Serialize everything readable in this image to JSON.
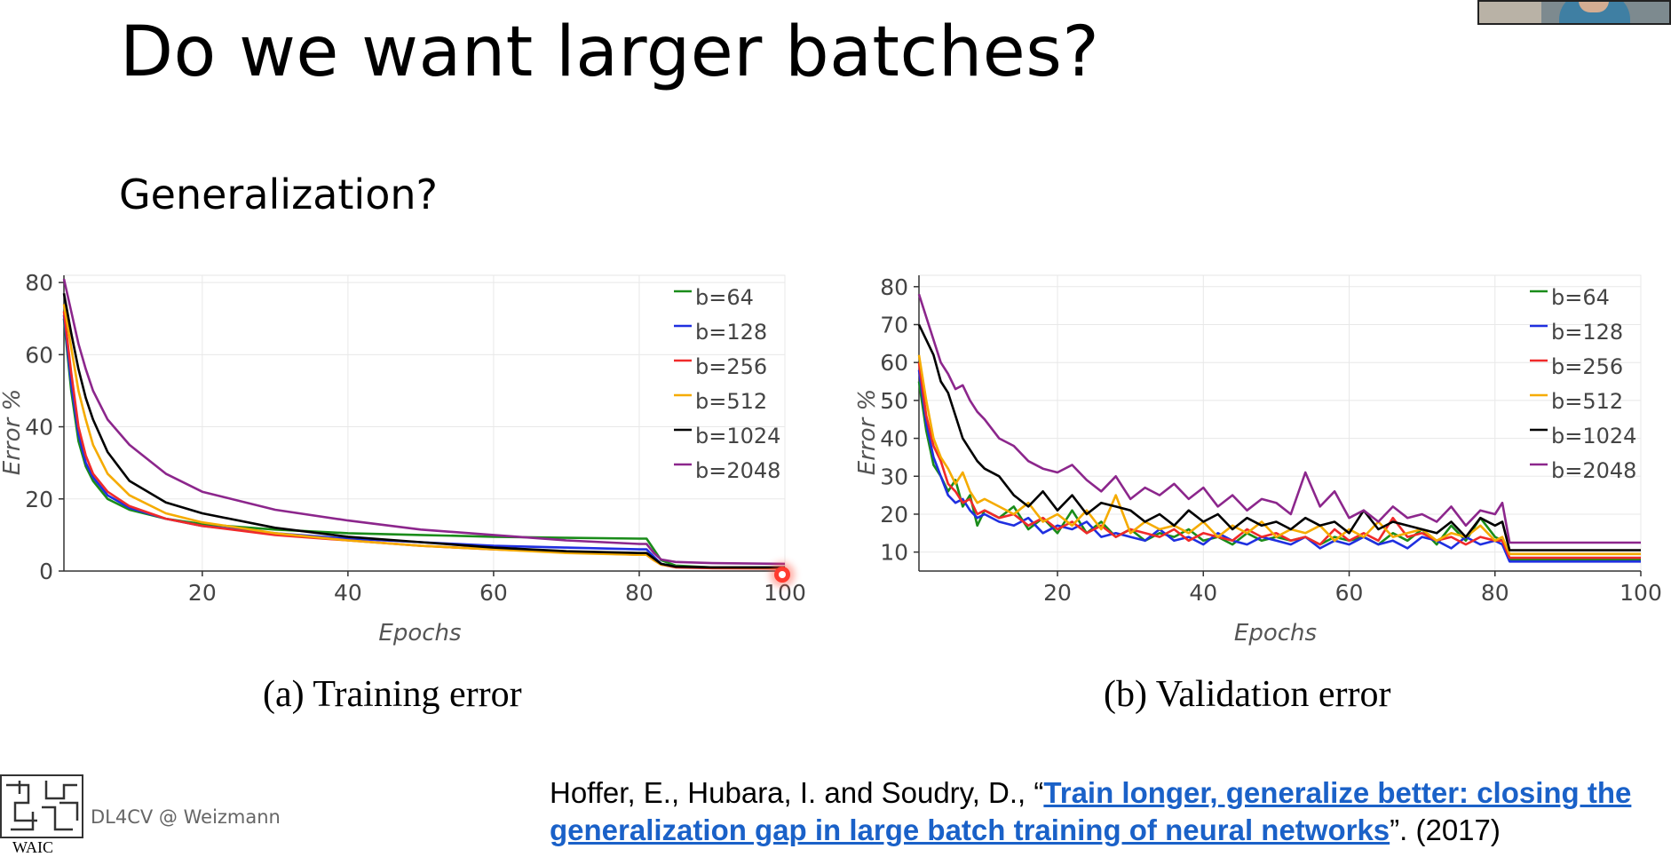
{
  "slide": {
    "title": "Do we want larger batches?",
    "subtitle": "Generalization?",
    "footer": {
      "course": "DL4CV @ Weizmann",
      "logo_text": "WAIC"
    },
    "reference": {
      "authors": "Hoffer, E., Hubara, I. and Soudry, D., “",
      "link_text": "Train longer, generalize better: closing the generalization gap in large batch training of neural networks",
      "tail": "”. (2017)"
    }
  },
  "chart_data": [
    {
      "type": "line",
      "caption": "(a) Training error",
      "xlabel": "Epochs",
      "ylabel": "Error %",
      "xlim": [
        1,
        100
      ],
      "ylim": [
        0,
        82
      ],
      "xticks": [
        20,
        40,
        60,
        80,
        100
      ],
      "yticks": [
        0,
        20,
        40,
        60,
        80
      ],
      "grid": true,
      "legend": "top-right",
      "series": [
        {
          "name": "b=64",
          "color": "#1a8c1a",
          "x": [
            1,
            2,
            3,
            4,
            5,
            7,
            10,
            15,
            20,
            30,
            40,
            50,
            60,
            70,
            80,
            81,
            82,
            83,
            85,
            90,
            100
          ],
          "y": [
            70,
            50,
            36,
            29,
            25,
            20,
            17,
            14.5,
            13,
            11.5,
            10.5,
            10,
            9.5,
            9.2,
            9,
            9,
            6,
            3,
            1.5,
            1,
            1
          ]
        },
        {
          "name": "b=128",
          "color": "#1f2fe0",
          "x": [
            1,
            2,
            3,
            4,
            5,
            7,
            10,
            15,
            20,
            30,
            40,
            50,
            60,
            70,
            80,
            81,
            82,
            83,
            85,
            90,
            100
          ],
          "y": [
            71,
            52,
            38,
            30,
            26,
            21,
            17.5,
            14.5,
            12.5,
            10.5,
            9,
            8,
            7,
            6.5,
            6,
            6,
            4,
            2,
            1.2,
            1,
            0.9
          ]
        },
        {
          "name": "b=256",
          "color": "#f02a2a",
          "x": [
            1,
            2,
            3,
            4,
            5,
            7,
            10,
            15,
            20,
            30,
            40,
            50,
            60,
            70,
            80,
            81,
            82,
            83,
            85,
            90,
            100
          ],
          "y": [
            72,
            55,
            40,
            32,
            27,
            22,
            18,
            14.5,
            12.5,
            10,
            8.5,
            7,
            6,
            5.2,
            4.5,
            4.5,
            3,
            1.8,
            1,
            0.8,
            0.7
          ]
        },
        {
          "name": "b=512",
          "color": "#f5ab00",
          "x": [
            1,
            2,
            3,
            4,
            5,
            7,
            10,
            15,
            20,
            30,
            40,
            50,
            60,
            70,
            80,
            81,
            82,
            83,
            85,
            90,
            100
          ],
          "y": [
            74,
            62,
            50,
            42,
            35,
            27,
            21,
            16,
            13.5,
            10.5,
            8.5,
            7,
            6,
            5,
            4.5,
            4.5,
            3,
            1.8,
            1.2,
            1,
            0.9
          ]
        },
        {
          "name": "b=1024",
          "color": "#000000",
          "x": [
            1,
            2,
            3,
            4,
            5,
            7,
            10,
            15,
            20,
            30,
            40,
            50,
            60,
            70,
            80,
            81,
            82,
            83,
            85,
            90,
            100
          ],
          "y": [
            77,
            66,
            56,
            48,
            42,
            33,
            25,
            19,
            16,
            12,
            9.5,
            8,
            6.5,
            5.5,
            5,
            5,
            3.5,
            2,
            1.2,
            1,
            1
          ]
        },
        {
          "name": "b=2048",
          "color": "#8c268c",
          "x": [
            1,
            2,
            3,
            4,
            5,
            7,
            10,
            15,
            20,
            30,
            40,
            50,
            60,
            70,
            80,
            81,
            82,
            83,
            85,
            90,
            100
          ],
          "y": [
            81,
            72,
            63,
            56,
            50,
            42,
            35,
            27,
            22,
            17,
            14,
            11.5,
            10,
            8.5,
            7.5,
            7.5,
            5,
            3.2,
            2.5,
            2.2,
            2
          ]
        }
      ]
    },
    {
      "type": "line",
      "caption": "(b) Validation error",
      "xlabel": "Epochs",
      "ylabel": "Error %",
      "xlim": [
        1,
        100
      ],
      "ylim": [
        5,
        83
      ],
      "xticks": [
        20,
        40,
        60,
        80,
        100
      ],
      "yticks": [
        10,
        20,
        30,
        40,
        50,
        60,
        70,
        80
      ],
      "grid": true,
      "legend": "top-right",
      "series": [
        {
          "name": "b=64",
          "color": "#1a8c1a",
          "x": [
            1,
            2,
            3,
            4,
            5,
            6,
            7,
            8,
            9,
            10,
            12,
            14,
            16,
            18,
            20,
            22,
            24,
            26,
            28,
            30,
            32,
            34,
            36,
            38,
            40,
            42,
            44,
            46,
            48,
            50,
            52,
            54,
            56,
            58,
            60,
            62,
            64,
            66,
            68,
            70,
            72,
            74,
            76,
            78,
            80,
            81,
            82,
            83,
            85,
            90,
            100
          ],
          "y": [
            55,
            42,
            33,
            30,
            26,
            29,
            22,
            25,
            17,
            21,
            19,
            22,
            16,
            19,
            15,
            21,
            15,
            18,
            14,
            16,
            13,
            15,
            14,
            16,
            13,
            14,
            12,
            15,
            13,
            14,
            13,
            14,
            12,
            14,
            13,
            14,
            12,
            15,
            13,
            16,
            12,
            17,
            13,
            19,
            14,
            13,
            8,
            8,
            8,
            8,
            8
          ]
        },
        {
          "name": "b=128",
          "color": "#1f2fe0",
          "x": [
            1,
            2,
            3,
            4,
            5,
            6,
            7,
            8,
            9,
            10,
            12,
            14,
            16,
            18,
            20,
            22,
            24,
            26,
            28,
            30,
            32,
            34,
            36,
            38,
            40,
            42,
            44,
            46,
            48,
            50,
            52,
            54,
            56,
            58,
            60,
            62,
            64,
            66,
            68,
            70,
            72,
            74,
            76,
            78,
            80,
            81,
            82,
            83,
            85,
            90,
            100
          ],
          "y": [
            58,
            44,
            35,
            30,
            25,
            23,
            24,
            21,
            19,
            20,
            18,
            17,
            19,
            15,
            17,
            16,
            18,
            14,
            15,
            14,
            13,
            16,
            13,
            14,
            12,
            15,
            13,
            12,
            14,
            13,
            12,
            14,
            11,
            13,
            12,
            14,
            12,
            13,
            11,
            14,
            13,
            11,
            14,
            12,
            13,
            12,
            7.5,
            7.5,
            7.5,
            7.5,
            7.5
          ]
        },
        {
          "name": "b=256",
          "color": "#f02a2a",
          "x": [
            1,
            2,
            3,
            4,
            5,
            6,
            7,
            8,
            9,
            10,
            12,
            14,
            16,
            18,
            20,
            22,
            24,
            26,
            28,
            30,
            32,
            34,
            36,
            38,
            40,
            42,
            44,
            46,
            48,
            50,
            52,
            54,
            56,
            58,
            60,
            62,
            64,
            66,
            68,
            70,
            72,
            74,
            76,
            78,
            80,
            81,
            82,
            83,
            85,
            90,
            100
          ],
          "y": [
            60,
            46,
            38,
            34,
            28,
            26,
            23,
            24,
            20,
            21,
            19,
            20,
            17,
            19,
            16,
            18,
            15,
            17,
            14,
            16,
            15,
            14,
            16,
            13,
            15,
            14,
            13,
            16,
            14,
            15,
            13,
            14,
            12,
            16,
            13,
            15,
            13,
            19,
            14,
            15,
            13,
            14,
            12,
            14,
            13,
            13,
            8.5,
            8.5,
            8.5,
            8.5,
            8.5
          ]
        },
        {
          "name": "b=512",
          "color": "#f5ab00",
          "x": [
            1,
            2,
            3,
            4,
            5,
            6,
            7,
            8,
            9,
            10,
            12,
            14,
            16,
            18,
            20,
            22,
            24,
            26,
            28,
            30,
            32,
            34,
            36,
            38,
            40,
            42,
            44,
            46,
            48,
            50,
            52,
            54,
            56,
            58,
            60,
            62,
            64,
            66,
            68,
            70,
            72,
            74,
            76,
            78,
            80,
            81,
            82,
            83,
            85,
            90,
            100
          ],
          "y": [
            62,
            50,
            40,
            35,
            32,
            28,
            31,
            26,
            23,
            24,
            22,
            20,
            23,
            18,
            20,
            17,
            21,
            16,
            25,
            15,
            18,
            16,
            17,
            15,
            18,
            14,
            17,
            15,
            18,
            14,
            16,
            15,
            17,
            13,
            16,
            14,
            18,
            14,
            15,
            16,
            13,
            15,
            14,
            17,
            13,
            14,
            9.5,
            9.5,
            9.5,
            9.5,
            9.5
          ]
        },
        {
          "name": "b=1024",
          "color": "#000000",
          "x": [
            1,
            2,
            3,
            4,
            5,
            6,
            7,
            8,
            9,
            10,
            12,
            14,
            16,
            18,
            20,
            22,
            24,
            26,
            28,
            30,
            32,
            34,
            36,
            38,
            40,
            42,
            44,
            46,
            48,
            50,
            52,
            54,
            56,
            58,
            60,
            62,
            64,
            66,
            68,
            70,
            72,
            74,
            76,
            78,
            80,
            81,
            82,
            83,
            85,
            90,
            100
          ],
          "y": [
            70,
            66,
            62,
            55,
            52,
            46,
            40,
            37,
            34,
            32,
            30,
            25,
            22,
            26,
            21,
            25,
            20,
            23,
            22,
            21,
            18,
            20,
            17,
            21,
            18,
            20,
            16,
            19,
            17,
            18,
            16,
            19,
            17,
            18,
            15,
            21,
            16,
            18,
            17,
            16,
            15,
            18,
            14,
            19,
            17,
            18,
            10.5,
            10.5,
            10.5,
            10.5,
            10.5
          ]
        },
        {
          "name": "b=2048",
          "color": "#8c268c",
          "x": [
            1,
            2,
            3,
            4,
            5,
            6,
            7,
            8,
            9,
            10,
            12,
            14,
            16,
            18,
            20,
            22,
            24,
            26,
            28,
            30,
            32,
            34,
            36,
            38,
            40,
            42,
            44,
            46,
            48,
            50,
            52,
            54,
            56,
            58,
            60,
            62,
            64,
            66,
            68,
            70,
            72,
            74,
            76,
            78,
            80,
            81,
            82,
            83,
            85,
            90,
            100
          ],
          "y": [
            78,
            72,
            66,
            60,
            57,
            53,
            54,
            50,
            47,
            45,
            40,
            38,
            34,
            32,
            31,
            33,
            29,
            26,
            30,
            24,
            27,
            25,
            28,
            24,
            27,
            22,
            25,
            21,
            24,
            23,
            20,
            31,
            22,
            26,
            19,
            21,
            18,
            22,
            19,
            20,
            18,
            22,
            17,
            21,
            20,
            23,
            12.5,
            12.5,
            12.5,
            12.5,
            12.5
          ]
        }
      ]
    }
  ]
}
